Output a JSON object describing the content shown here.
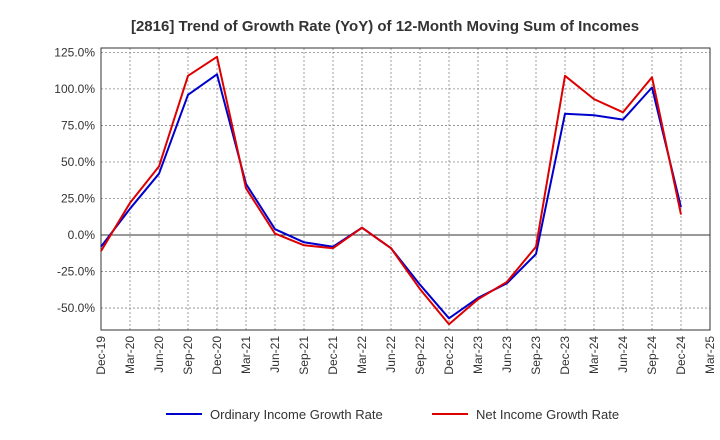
{
  "chart_data": {
    "type": "line",
    "title": "[2816]  Trend of Growth Rate (YoY) of 12-Month Moving Sum of Incomes",
    "xlabel": "",
    "ylabel": "",
    "x_tick_labels": [
      "Dec-19",
      "Mar-20",
      "Jun-20",
      "Sep-20",
      "Dec-20",
      "Mar-21",
      "Jun-21",
      "Sep-21",
      "Dec-21",
      "Mar-22",
      "Jun-22",
      "Sep-22",
      "Dec-22",
      "Mar-23",
      "Jun-23",
      "Sep-23",
      "Dec-23",
      "Mar-24",
      "Jun-24",
      "Sep-24",
      "Dec-24",
      "Mar-25"
    ],
    "y_tick_labels": [
      "-50.0%",
      "-25.0%",
      "0.0%",
      "25.0%",
      "50.0%",
      "75.0%",
      "100.0%",
      "125.0%"
    ],
    "y_ticks": [
      -50,
      -25,
      0,
      25,
      50,
      75,
      100,
      125
    ],
    "ylim": [
      -65,
      128
    ],
    "grid": true,
    "legend_position": "bottom",
    "categories": [
      "Dec-19",
      "Mar-20",
      "Jun-20",
      "Sep-20",
      "Dec-20",
      "Mar-21",
      "Jun-21",
      "Sep-21",
      "Dec-21",
      "Mar-22",
      "Jun-22",
      "Sep-22",
      "Dec-22",
      "Mar-23",
      "Jun-23",
      "Sep-23",
      "Dec-23",
      "Mar-24",
      "Jun-24",
      "Sep-24",
      "Dec-24"
    ],
    "series": [
      {
        "name": "Ordinary Income Growth Rate",
        "color": "#0000cc",
        "values": [
          -8,
          18,
          42,
          96,
          110,
          35,
          4,
          -5,
          -8,
          5,
          -9,
          -34,
          -57,
          -43,
          -33,
          -13,
          83,
          82,
          79,
          101,
          19
        ]
      },
      {
        "name": "Net Income Growth Rate",
        "color": "#dd0000",
        "values": [
          -11,
          22,
          47,
          109,
          122,
          32,
          1,
          -7,
          -9,
          5,
          -9,
          -37,
          -61,
          -44,
          -32,
          -8,
          109,
          93,
          84,
          108,
          14
        ]
      }
    ],
    "colors": {
      "grid": "#888888",
      "zero_line": "#333333",
      "plot_border": "#333333"
    }
  }
}
